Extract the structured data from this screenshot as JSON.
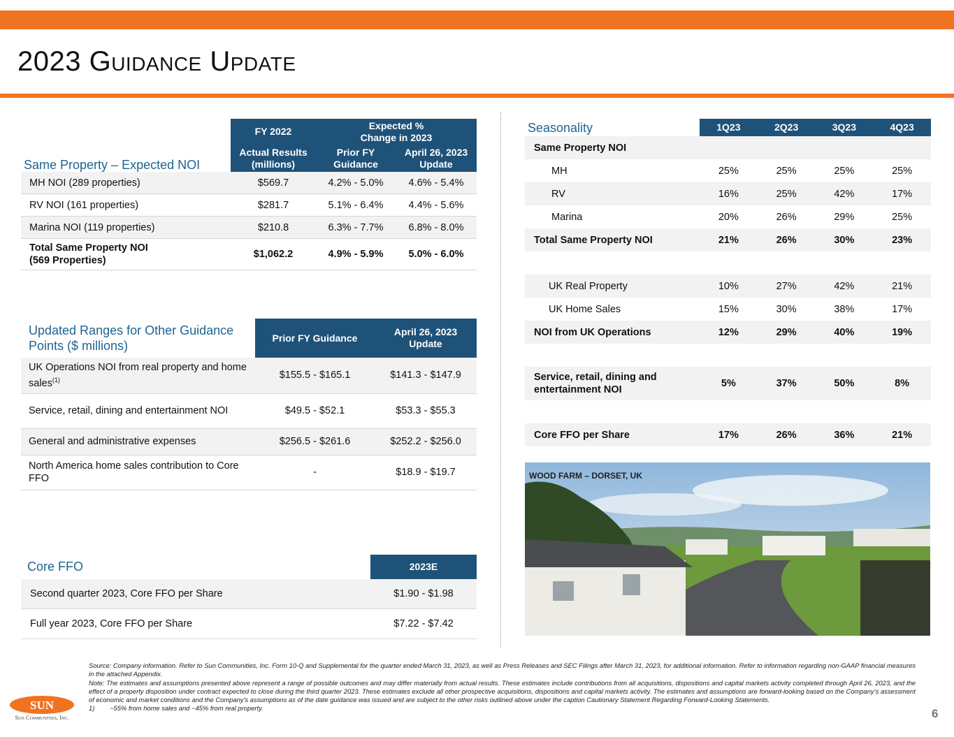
{
  "header": {
    "title": "2023 Guidance Update"
  },
  "noi_table": {
    "title": "Same Property – Expected NOI",
    "group_headers": [
      "FY 2022",
      "Expected % Change in 2023"
    ],
    "columns": [
      "Actual Results (millions)",
      "Prior FY Guidance",
      "April 26, 2023 Update"
    ],
    "rows": [
      {
        "label": "MH NOI (289 properties)",
        "values": [
          "$569.7",
          "4.2% - 5.0%",
          "4.6% - 5.4%"
        ]
      },
      {
        "label": "RV NOI (161 properties)",
        "values": [
          "$281.7",
          "5.1% - 6.4%",
          "4.4% - 5.6%"
        ]
      },
      {
        "label": "Marina NOI (119 properties)",
        "values": [
          "$210.8",
          "6.3% - 7.7%",
          "6.8% - 8.0%"
        ]
      },
      {
        "label": "Total Same Property NOI (569 Properties)",
        "bold": true,
        "values": [
          "$1,062.2",
          "4.9% - 5.9%",
          "5.0% - 6.0%"
        ]
      }
    ]
  },
  "other_table": {
    "title": "Updated Ranges for Other Guidance Points ($ millions)",
    "columns": [
      "Prior FY Guidance",
      "April 26, 2023 Update"
    ],
    "rows": [
      {
        "label": "UK Operations NOI from real property and home sales",
        "sup": "(1)",
        "values": [
          "$155.5 - $165.1",
          "$141.3 - $147.9"
        ]
      },
      {
        "label": "Service, retail, dining and entertainment NOI",
        "values": [
          "$49.5 - $52.1",
          "$53.3 - $55.3"
        ]
      },
      {
        "label": "General and administrative expenses",
        "values": [
          "$256.5 - $261.6",
          "$252.2 - $256.0"
        ]
      },
      {
        "label": "North America home sales contribution to Core FFO",
        "values": [
          "-",
          "$18.9 - $19.7"
        ]
      }
    ]
  },
  "ffo_table": {
    "title": "Core FFO",
    "columns": [
      "2023E"
    ],
    "rows": [
      {
        "label": "Second quarter 2023, Core FFO per Share",
        "values": [
          "$1.90 - $1.98"
        ]
      },
      {
        "label": "Full year 2023, Core FFO per Share",
        "values": [
          "$7.22 - $7.42"
        ]
      }
    ]
  },
  "seasonality": {
    "title": "Seasonality",
    "columns": [
      "1Q23",
      "2Q23",
      "3Q23",
      "4Q23"
    ],
    "sections": [
      [
        {
          "label": "Same Property NOI",
          "bold": true,
          "values": []
        },
        {
          "label": "MH",
          "values": [
            "25%",
            "25%",
            "25%",
            "25%"
          ]
        },
        {
          "label": "RV",
          "values": [
            "16%",
            "25%",
            "42%",
            "17%"
          ]
        },
        {
          "label": "Marina",
          "values": [
            "20%",
            "26%",
            "29%",
            "25%"
          ]
        },
        {
          "label": "Total Same Property NOI",
          "bold": true,
          "values": [
            "21%",
            "26%",
            "30%",
            "23%"
          ]
        }
      ],
      [
        {
          "label": "UK Real Property",
          "values": [
            "10%",
            "27%",
            "42%",
            "21%"
          ]
        },
        {
          "label": "UK Home Sales",
          "values": [
            "15%",
            "30%",
            "38%",
            "17%"
          ]
        },
        {
          "label": "NOI from UK Operations",
          "bold": true,
          "values": [
            "12%",
            "29%",
            "40%",
            "19%"
          ]
        }
      ],
      [
        {
          "label": "Service, retail, dining and entertainment NOI",
          "bold": true,
          "values": [
            "5%",
            "37%",
            "50%",
            "8%"
          ]
        }
      ],
      [
        {
          "label": "Core FFO per Share",
          "bold": true,
          "values": [
            "17%",
            "26%",
            "36%",
            "21%"
          ]
        }
      ]
    ]
  },
  "photo": {
    "caption": "WOOD FARM – DORSET, UK"
  },
  "footer": {
    "source": "Source: Company information. Refer to Sun Communities, Inc. Form 10-Q and Supplemental for the quarter ended March 31, 2023, as well as Press Releases and SEC Filings after March 31, 2023, for additional information. Refer to information regarding non-GAAP financial measures in the attached Appendix.",
    "note": "Note: The estimates and assumptions presented above represent a range of possible outcomes and may differ materially from actual results. These estimates include contributions from all acquisitions, dispositions and capital markets activity completed through April 26, 2023, and the effect of a property disposition under contract expected to close during the third quarter 2023. These estimates exclude all other prospective acquisitions, dispositions and capital markets activity. The estimates and assumptions are forward-looking based on the Company’s assessment of economic and market conditions and the Company’s assumptions as of the date guidance was issued and are subject to the other risks outlined above under the caption Cautionary Statement Regarding Forward-Looking Statements.",
    "footnote_number": "1)",
    "footnote": "~55% from home sales and ~45% from real property.",
    "page": "6"
  },
  "logo": {
    "name": "SUN",
    "tagline": "Sun Communities, Inc."
  }
}
